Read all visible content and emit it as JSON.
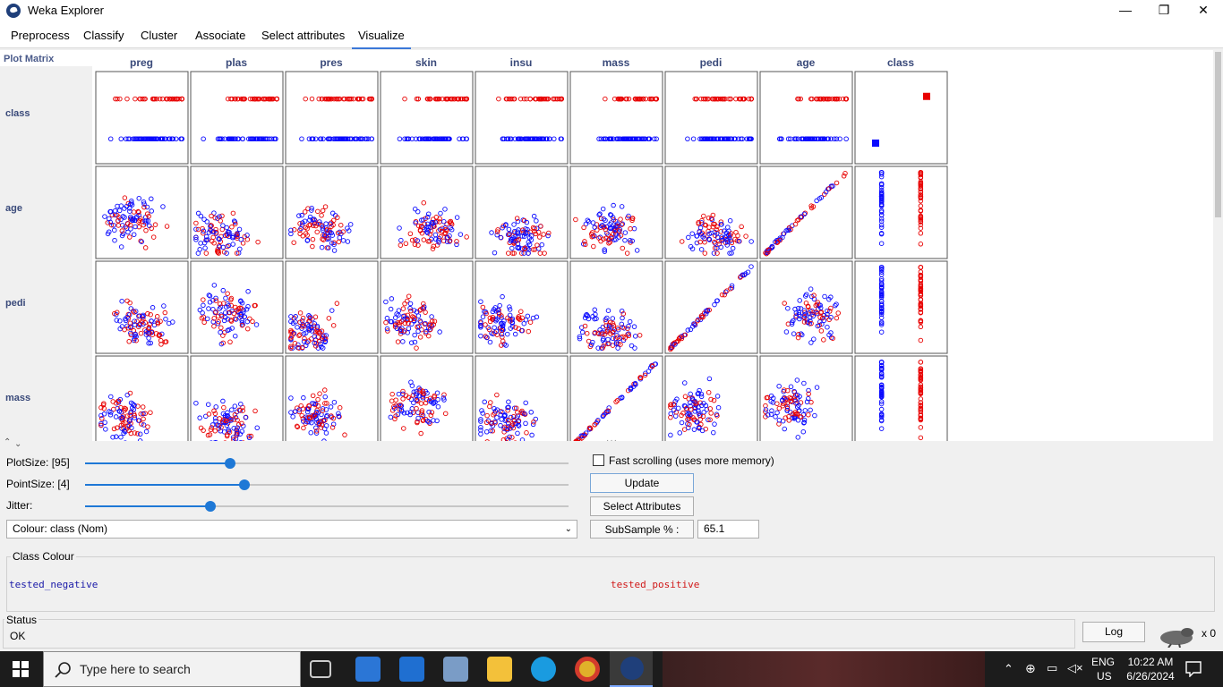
{
  "window": {
    "title": "Weka Explorer",
    "minimize": "—",
    "maximize": "❐",
    "close": "✕"
  },
  "tabs": [
    "Preprocess",
    "Classify",
    "Cluster",
    "Associate",
    "Select attributes",
    "Visualize"
  ],
  "active_tab": "Visualize",
  "matrix": {
    "title": "Plot Matrix",
    "columns": [
      "preg",
      "plas",
      "pres",
      "skin",
      "insu",
      "mass",
      "pedi",
      "age",
      "class"
    ],
    "rows": [
      "class",
      "age",
      "pedi",
      "mass"
    ]
  },
  "controls": {
    "plot_size_label": "PlotSize: [95]",
    "plot_size_value": 0.3,
    "point_size_label": "PointSize: [4]",
    "point_size_value": 0.33,
    "jitter_label": "Jitter:",
    "jitter_value": 0.26,
    "fast_scrolling_label": "Fast scrolling (uses more memory)",
    "fast_scrolling_checked": false,
    "update_label": "Update",
    "select_attributes_label": "Select Attributes",
    "colour_value": "Colour: class  (Nom)",
    "subsample_label": "SubSample % :",
    "subsample_value": "65.1"
  },
  "class_colour": {
    "title": "Class Colour",
    "negative": "tested_negative",
    "positive": "tested_positive",
    "negative_color": "#1a1aa8",
    "positive_color": "#d01818"
  },
  "status": {
    "title": "Status",
    "text": "OK",
    "log_label": "Log",
    "count": "x 0"
  },
  "taskbar": {
    "search_placeholder": "Type here to search",
    "lang": "ENG",
    "region": "US",
    "time": "10:22 AM",
    "date": "6/26/2024"
  },
  "colors": {
    "blue_points": "#0a0aff",
    "red_points": "#e80000",
    "accent": "#1e78d6"
  }
}
